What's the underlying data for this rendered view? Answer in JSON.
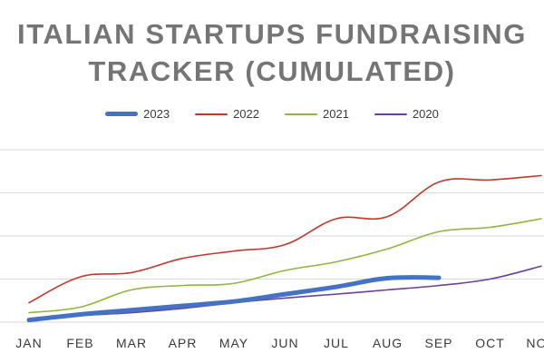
{
  "chart_data": {
    "type": "line",
    "title_line1": "ITALIAN STARTUPS FUNDRAISING",
    "title_line2": "TRACKER (CUMULATED)",
    "categories": [
      "JAN",
      "FEB",
      "MAR",
      "APR",
      "MAY",
      "JUN",
      "JUL",
      "AUG",
      "SEP",
      "OCT",
      "NOV"
    ],
    "ylim": [
      0,
      4
    ],
    "grid": true,
    "legend": "top",
    "series": [
      {
        "name": "2023",
        "color": "#4472C4",
        "width": 5,
        "values": [
          0.05,
          0.18,
          0.28,
          0.38,
          0.48,
          0.65,
          0.82,
          1.02,
          1.03,
          null,
          null
        ]
      },
      {
        "name": "2022",
        "color": "#C0392B",
        "width": 1.6,
        "values": [
          0.45,
          1.05,
          1.15,
          1.48,
          1.65,
          1.8,
          2.4,
          2.45,
          3.25,
          3.3,
          3.4
        ]
      },
      {
        "name": "2021",
        "color": "#8DB83A",
        "width": 1.6,
        "values": [
          0.22,
          0.35,
          0.75,
          0.85,
          0.9,
          1.2,
          1.4,
          1.7,
          2.1,
          2.2,
          2.4
        ]
      },
      {
        "name": "2020",
        "color": "#6B3FA0",
        "width": 1.6,
        "values": [
          0.05,
          0.15,
          0.22,
          0.32,
          0.45,
          0.56,
          0.65,
          0.75,
          0.85,
          1.0,
          1.3
        ]
      }
    ]
  }
}
